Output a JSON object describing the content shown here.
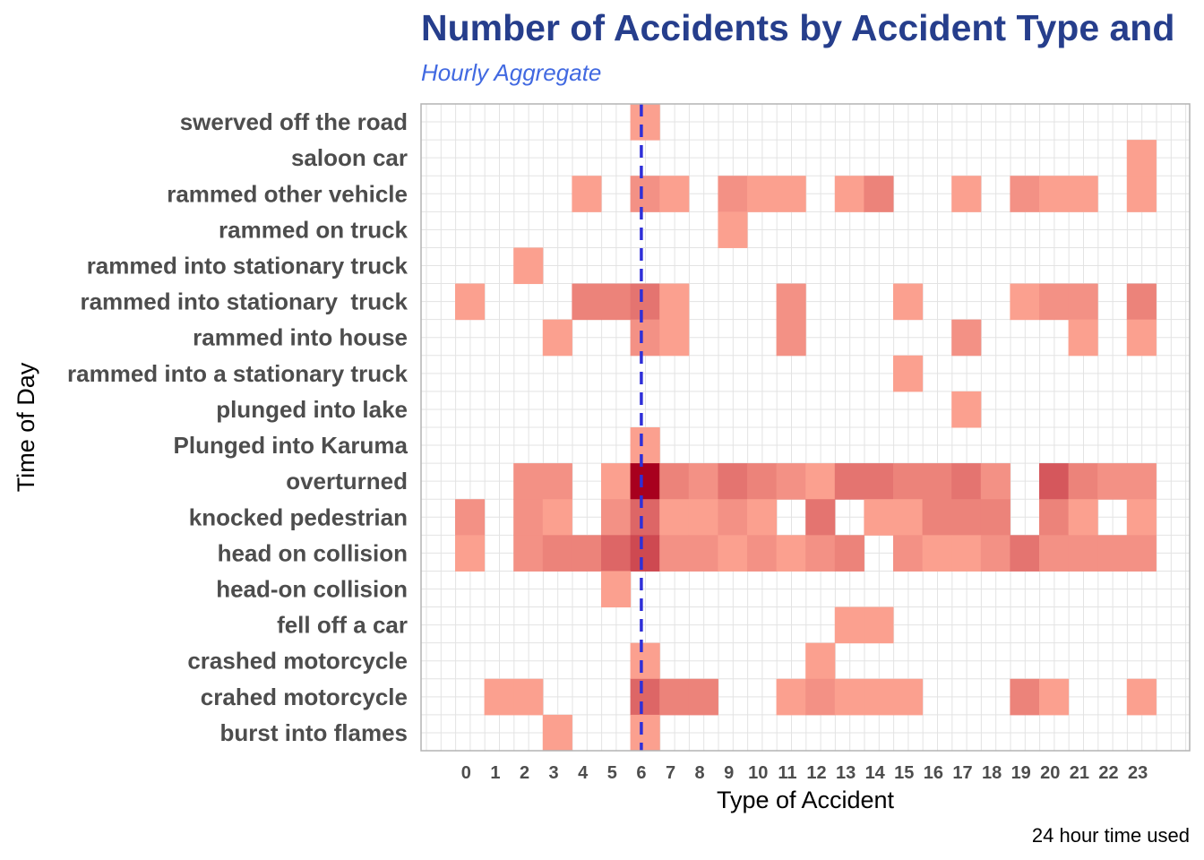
{
  "chart_data": {
    "type": "heatmap",
    "title": "Number of Accidents by Accident Type and",
    "subtitle": "Hourly Aggregate",
    "xlabel": "Type of Accident",
    "ylabel": "Time of Day",
    "caption": "24 hour time used",
    "x_ticks": [
      "0",
      "1",
      "2",
      "3",
      "4",
      "5",
      "6",
      "7",
      "8",
      "9",
      "10",
      "11",
      "12",
      "13",
      "14",
      "15",
      "16",
      "17",
      "18",
      "19",
      "20",
      "21",
      "22",
      "23"
    ],
    "y_categories": [
      "swerved off the road",
      "saloon car",
      "rammed other vehicle",
      "rammed on truck",
      "rammed into stationary truck",
      "rammed into stationary  truck",
      "rammed into house",
      "rammed into a stationary truck",
      "plunged into lake",
      "Plunged into Karuma",
      "overturned",
      "knocked pedestrian",
      "head on collision",
      "head-on collision",
      "fell off a car",
      "crashed motorcycle",
      "crahed motorcycle",
      "burst into flames"
    ],
    "reference_line": {
      "x": 6,
      "style": "dashed",
      "color": "#2f2fd8"
    },
    "grid": true,
    "legend": "none",
    "color_low": "#fba08f",
    "color_high": "#a8001e",
    "value_range": [
      1,
      12
    ],
    "cells": [
      {
        "row": "swerved off the road",
        "values": [
          [
            6,
            1
          ]
        ]
      },
      {
        "row": "saloon car",
        "values": [
          [
            23,
            1
          ]
        ]
      },
      {
        "row": "rammed other vehicle",
        "values": [
          [
            4,
            1
          ],
          [
            6,
            2
          ],
          [
            7,
            1
          ],
          [
            9,
            2
          ],
          [
            10,
            1
          ],
          [
            11,
            1
          ],
          [
            13,
            1
          ],
          [
            14,
            3
          ],
          [
            17,
            1
          ],
          [
            19,
            2
          ],
          [
            20,
            1
          ],
          [
            21,
            1
          ],
          [
            23,
            1
          ]
        ]
      },
      {
        "row": "rammed on truck",
        "values": [
          [
            9,
            1
          ]
        ]
      },
      {
        "row": "rammed into stationary truck",
        "values": [
          [
            2,
            1
          ]
        ]
      },
      {
        "row": "rammed into stationary  truck",
        "values": [
          [
            0,
            1
          ],
          [
            4,
            3
          ],
          [
            5,
            3
          ],
          [
            6,
            4
          ],
          [
            7,
            1
          ],
          [
            11,
            2
          ],
          [
            15,
            1
          ],
          [
            19,
            1
          ],
          [
            20,
            2
          ],
          [
            21,
            2
          ],
          [
            23,
            3
          ]
        ]
      },
      {
        "row": "rammed into house",
        "values": [
          [
            3,
            1
          ],
          [
            6,
            2
          ],
          [
            7,
            1
          ],
          [
            11,
            2
          ],
          [
            17,
            2
          ],
          [
            21,
            1
          ],
          [
            23,
            1
          ]
        ]
      },
      {
        "row": "rammed into a stationary truck",
        "values": [
          [
            15,
            1
          ]
        ]
      },
      {
        "row": "plunged into lake",
        "values": [
          [
            17,
            1
          ]
        ]
      },
      {
        "row": "Plunged into Karuma",
        "values": [
          [
            6,
            1
          ]
        ]
      },
      {
        "row": "overturned",
        "values": [
          [
            2,
            2
          ],
          [
            3,
            2
          ],
          [
            5,
            1
          ],
          [
            6,
            12
          ],
          [
            7,
            3
          ],
          [
            8,
            2
          ],
          [
            9,
            4
          ],
          [
            10,
            3
          ],
          [
            11,
            2
          ],
          [
            12,
            1
          ],
          [
            13,
            4
          ],
          [
            14,
            4
          ],
          [
            15,
            3
          ],
          [
            16,
            3
          ],
          [
            17,
            4
          ],
          [
            18,
            2
          ],
          [
            20,
            6
          ],
          [
            21,
            3
          ],
          [
            22,
            2
          ],
          [
            23,
            2
          ]
        ]
      },
      {
        "row": "knocked pedestrian",
        "values": [
          [
            0,
            2
          ],
          [
            2,
            2
          ],
          [
            3,
            1
          ],
          [
            5,
            2
          ],
          [
            6,
            5
          ],
          [
            7,
            1
          ],
          [
            8,
            1
          ],
          [
            9,
            2
          ],
          [
            10,
            1
          ],
          [
            12,
            4
          ],
          [
            14,
            1
          ],
          [
            15,
            1
          ],
          [
            16,
            3
          ],
          [
            17,
            3
          ],
          [
            18,
            3
          ],
          [
            20,
            3
          ],
          [
            21,
            1
          ],
          [
            23,
            1
          ]
        ]
      },
      {
        "row": "head on collision",
        "values": [
          [
            0,
            1
          ],
          [
            2,
            2
          ],
          [
            3,
            3
          ],
          [
            4,
            3
          ],
          [
            5,
            5
          ],
          [
            6,
            7
          ],
          [
            7,
            2
          ],
          [
            8,
            2
          ],
          [
            9,
            1
          ],
          [
            10,
            2
          ],
          [
            11,
            1
          ],
          [
            12,
            2
          ],
          [
            13,
            3
          ],
          [
            15,
            2
          ],
          [
            16,
            1
          ],
          [
            17,
            1
          ],
          [
            18,
            2
          ],
          [
            19,
            4
          ],
          [
            20,
            2
          ],
          [
            21,
            2
          ],
          [
            22,
            2
          ],
          [
            23,
            2
          ]
        ]
      },
      {
        "row": "head-on collision",
        "values": [
          [
            5,
            1
          ]
        ]
      },
      {
        "row": "fell off a car",
        "values": [
          [
            13,
            1
          ],
          [
            14,
            1
          ]
        ]
      },
      {
        "row": "crashed motorcycle",
        "values": [
          [
            6,
            1
          ],
          [
            12,
            1
          ]
        ]
      },
      {
        "row": "crahed motorcycle",
        "values": [
          [
            1,
            1
          ],
          [
            2,
            1
          ],
          [
            6,
            5
          ],
          [
            7,
            3
          ],
          [
            8,
            3
          ],
          [
            11,
            1
          ],
          [
            12,
            2
          ],
          [
            13,
            1
          ],
          [
            14,
            1
          ],
          [
            15,
            1
          ],
          [
            19,
            3
          ],
          [
            20,
            1
          ],
          [
            23,
            1
          ]
        ]
      },
      {
        "row": "burst into flames",
        "values": [
          [
            3,
            1
          ],
          [
            6,
            1
          ]
        ]
      }
    ]
  }
}
